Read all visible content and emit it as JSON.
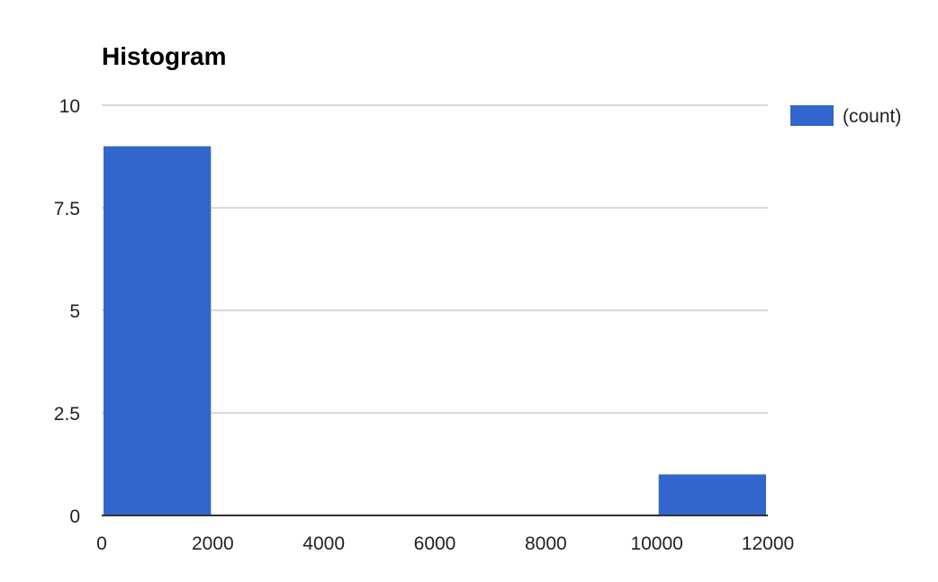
{
  "chart_data": {
    "type": "bar",
    "title": "Histogram",
    "xlabel": "",
    "ylabel": "",
    "bins": [
      {
        "start": 0,
        "end": 2000,
        "count": 9
      },
      {
        "start": 2000,
        "end": 4000,
        "count": 0
      },
      {
        "start": 4000,
        "end": 6000,
        "count": 0
      },
      {
        "start": 6000,
        "end": 8000,
        "count": 0
      },
      {
        "start": 8000,
        "end": 10000,
        "count": 0
      },
      {
        "start": 10000,
        "end": 12000,
        "count": 1
      }
    ],
    "xlim": [
      0,
      12000
    ],
    "ylim": [
      0,
      10
    ],
    "x_ticks": [
      "0",
      "2000",
      "4000",
      "6000",
      "8000",
      "10000",
      "12000"
    ],
    "y_ticks": [
      "0",
      "2.5",
      "5",
      "7.5",
      "10"
    ],
    "series": [
      {
        "name": "(count)",
        "color": "#3366cc"
      }
    ],
    "grid": true,
    "legend": "right"
  }
}
